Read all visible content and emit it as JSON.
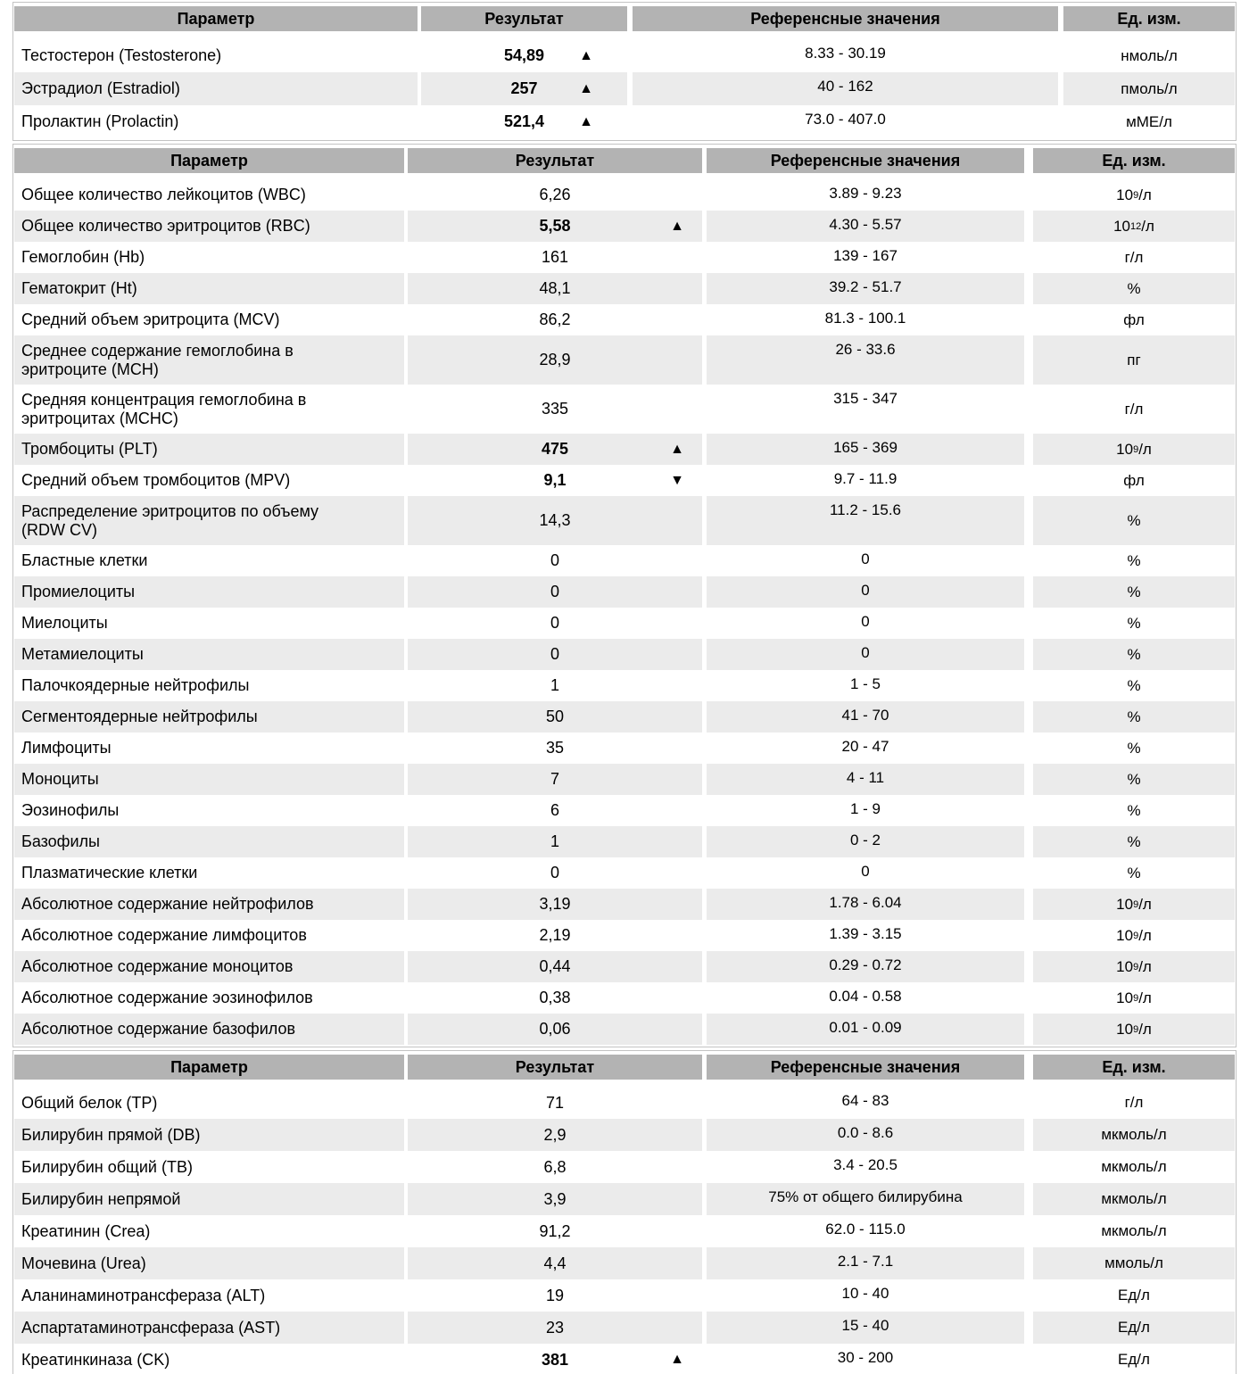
{
  "columns": {
    "parameter": "Параметр",
    "result": "Результат",
    "reference": "Референсные значения",
    "unit": "Ед. изм."
  },
  "colors": {
    "header_bg": "#b3b3b3",
    "stripe_bg": "#ebebeb",
    "flag_color": "#000000"
  },
  "flag_icons": {
    "high": "▲",
    "low": "▼"
  },
  "sections": [
    {
      "rows": [
        {
          "parameter": "Тестостерон (Testosterone)",
          "result": "54,89",
          "bold": true,
          "flag": "▲",
          "reference": "8.33 - 30.19",
          "unit": "нмоль/л"
        },
        {
          "parameter": "Эстрадиол (Estradiol)",
          "result": "257",
          "bold": true,
          "flag": "▲",
          "reference": "40 - 162",
          "unit": "пмоль/л"
        },
        {
          "parameter": "Пролактин (Prolactin)",
          "result": "521,4",
          "bold": true,
          "flag": "▲",
          "reference": "73.0 - 407.0",
          "unit": "мМЕ/л"
        }
      ]
    },
    {
      "rows": [
        {
          "parameter": "Общее количество лейкоцитов (WBC)",
          "result": "6,26",
          "reference": "3.89 - 9.23",
          "unit": "10",
          "unit_sup": "9",
          "unit_tail": "/л"
        },
        {
          "parameter": "Общее количество эритроцитов (RBC)",
          "result": "5,58",
          "bold": true,
          "flag": "▲",
          "reference": "4.30 - 5.57",
          "unit": "10",
          "unit_sup": "12",
          "unit_tail": "/л"
        },
        {
          "parameter": "Гемоглобин (Hb)",
          "result": "161",
          "reference": "139 - 167",
          "unit": "г/л"
        },
        {
          "parameter": "Гематокрит (Ht)",
          "result": "48,1",
          "reference": "39.2 - 51.7",
          "unit": "%"
        },
        {
          "parameter": "Средний объем эритроцита (MCV)",
          "result": "86,2",
          "reference": "81.3 - 100.1",
          "unit": "фл"
        },
        {
          "parameter": "Среднее содержание гемоглобина в эритроците (MCH)",
          "result": "28,9",
          "tall": true,
          "reference": "26 - 33.6",
          "unit": "пг"
        },
        {
          "parameter": "Средняя концентрация гемоглобина в эритроцитах (MCHC)",
          "result": "335",
          "tall": true,
          "reference": "315 - 347",
          "unit": "г/л"
        },
        {
          "parameter": "Тромбоциты (PLT)",
          "result": "475",
          "bold": true,
          "flag": "▲",
          "reference": "165 - 369",
          "unit": "10",
          "unit_sup": "9",
          "unit_tail": "/л"
        },
        {
          "parameter": "Средний объем тромбоцитов (MPV)",
          "result": "9,1",
          "bold": true,
          "flag": "▼",
          "reference": "9.7 - 11.9",
          "unit": "фл"
        },
        {
          "parameter": "Распределение эритроцитов по объему (RDW CV)",
          "result": "14,3",
          "tall": true,
          "reference": "11.2 - 15.6",
          "unit": "%"
        },
        {
          "parameter": "Бластные клетки",
          "result": "0",
          "reference": "0",
          "unit": "%"
        },
        {
          "parameter": "Промиелоциты",
          "result": "0",
          "reference": "0",
          "unit": "%"
        },
        {
          "parameter": "Миелоциты",
          "result": "0",
          "reference": "0",
          "unit": "%"
        },
        {
          "parameter": "Метамиелоциты",
          "result": "0",
          "reference": "0",
          "unit": "%"
        },
        {
          "parameter": "Палочкоядерные нейтрофилы",
          "result": "1",
          "reference": "1 - 5",
          "unit": "%"
        },
        {
          "parameter": "Сегментоядерные нейтрофилы",
          "result": "50",
          "reference": "41 - 70",
          "unit": "%"
        },
        {
          "parameter": "Лимфоциты",
          "result": "35",
          "reference": "20 - 47",
          "unit": "%"
        },
        {
          "parameter": "Моноциты",
          "result": "7",
          "reference": "4 - 11",
          "unit": "%"
        },
        {
          "parameter": "Эозинофилы",
          "result": "6",
          "reference": "1 - 9",
          "unit": "%"
        },
        {
          "parameter": "Базофилы",
          "result": "1",
          "reference": "0 - 2",
          "unit": "%"
        },
        {
          "parameter": "Плазматические клетки",
          "result": "0",
          "reference": "0",
          "unit": "%"
        },
        {
          "parameter": "Абсолютное содержание нейтрофилов",
          "result": "3,19",
          "reference": "1.78 - 6.04",
          "unit": "10",
          "unit_sup": "9",
          "unit_tail": "/л"
        },
        {
          "parameter": "Абсолютное содержание лимфоцитов",
          "result": "2,19",
          "reference": "1.39 - 3.15",
          "unit": "10",
          "unit_sup": "9",
          "unit_tail": "/л"
        },
        {
          "parameter": "Абсолютное содержание моноцитов",
          "result": "0,44",
          "reference": "0.29 - 0.72",
          "unit": "10",
          "unit_sup": "9",
          "unit_tail": "/л"
        },
        {
          "parameter": "Абсолютное содержание эозинофилов",
          "result": "0,38",
          "reference": "0.04 - 0.58",
          "unit": "10",
          "unit_sup": "9",
          "unit_tail": "/л"
        },
        {
          "parameter": "Абсолютное содержание базофилов",
          "result": "0,06",
          "reference": "0.01 - 0.09",
          "unit": "10",
          "unit_sup": "9",
          "unit_tail": "/л"
        }
      ]
    },
    {
      "rows": [
        {
          "parameter": "Общий белок (TP)",
          "result": "71",
          "reference": "64 - 83",
          "unit": "г/л"
        },
        {
          "parameter": "Билирубин прямой (DB)",
          "result": "2,9",
          "reference": "0.0 - 8.6",
          "unit": "мкмоль/л"
        },
        {
          "parameter": "Билирубин общий (TB)",
          "result": "6,8",
          "reference": "3.4 - 20.5",
          "unit": "мкмоль/л"
        },
        {
          "parameter": "Билирубин непрямой",
          "result": "3,9",
          "reference": "75% от общего билирубина",
          "unit": "мкмоль/л"
        },
        {
          "parameter": "Креатинин (Crea)",
          "result": "91,2",
          "reference": "62.0 - 115.0",
          "unit": "мкмоль/л"
        },
        {
          "parameter": "Мочевина (Urea)",
          "result": "4,4",
          "reference": "2.1 - 7.1",
          "unit": "ммоль/л"
        },
        {
          "parameter": "Аланинаминотрансфераза (ALT)",
          "result": "19",
          "reference": "10 - 40",
          "unit": "Ед/л"
        },
        {
          "parameter": "Аспартатаминотрансфераза (AST)",
          "result": "23",
          "reference": "15 - 40",
          "unit": "Ед/л"
        },
        {
          "parameter": "Креатинкиназа (CK)",
          "result": "381",
          "bold": true,
          "flag": "▲",
          "reference": "30 - 200",
          "unit": "Ед/л"
        }
      ]
    }
  ]
}
